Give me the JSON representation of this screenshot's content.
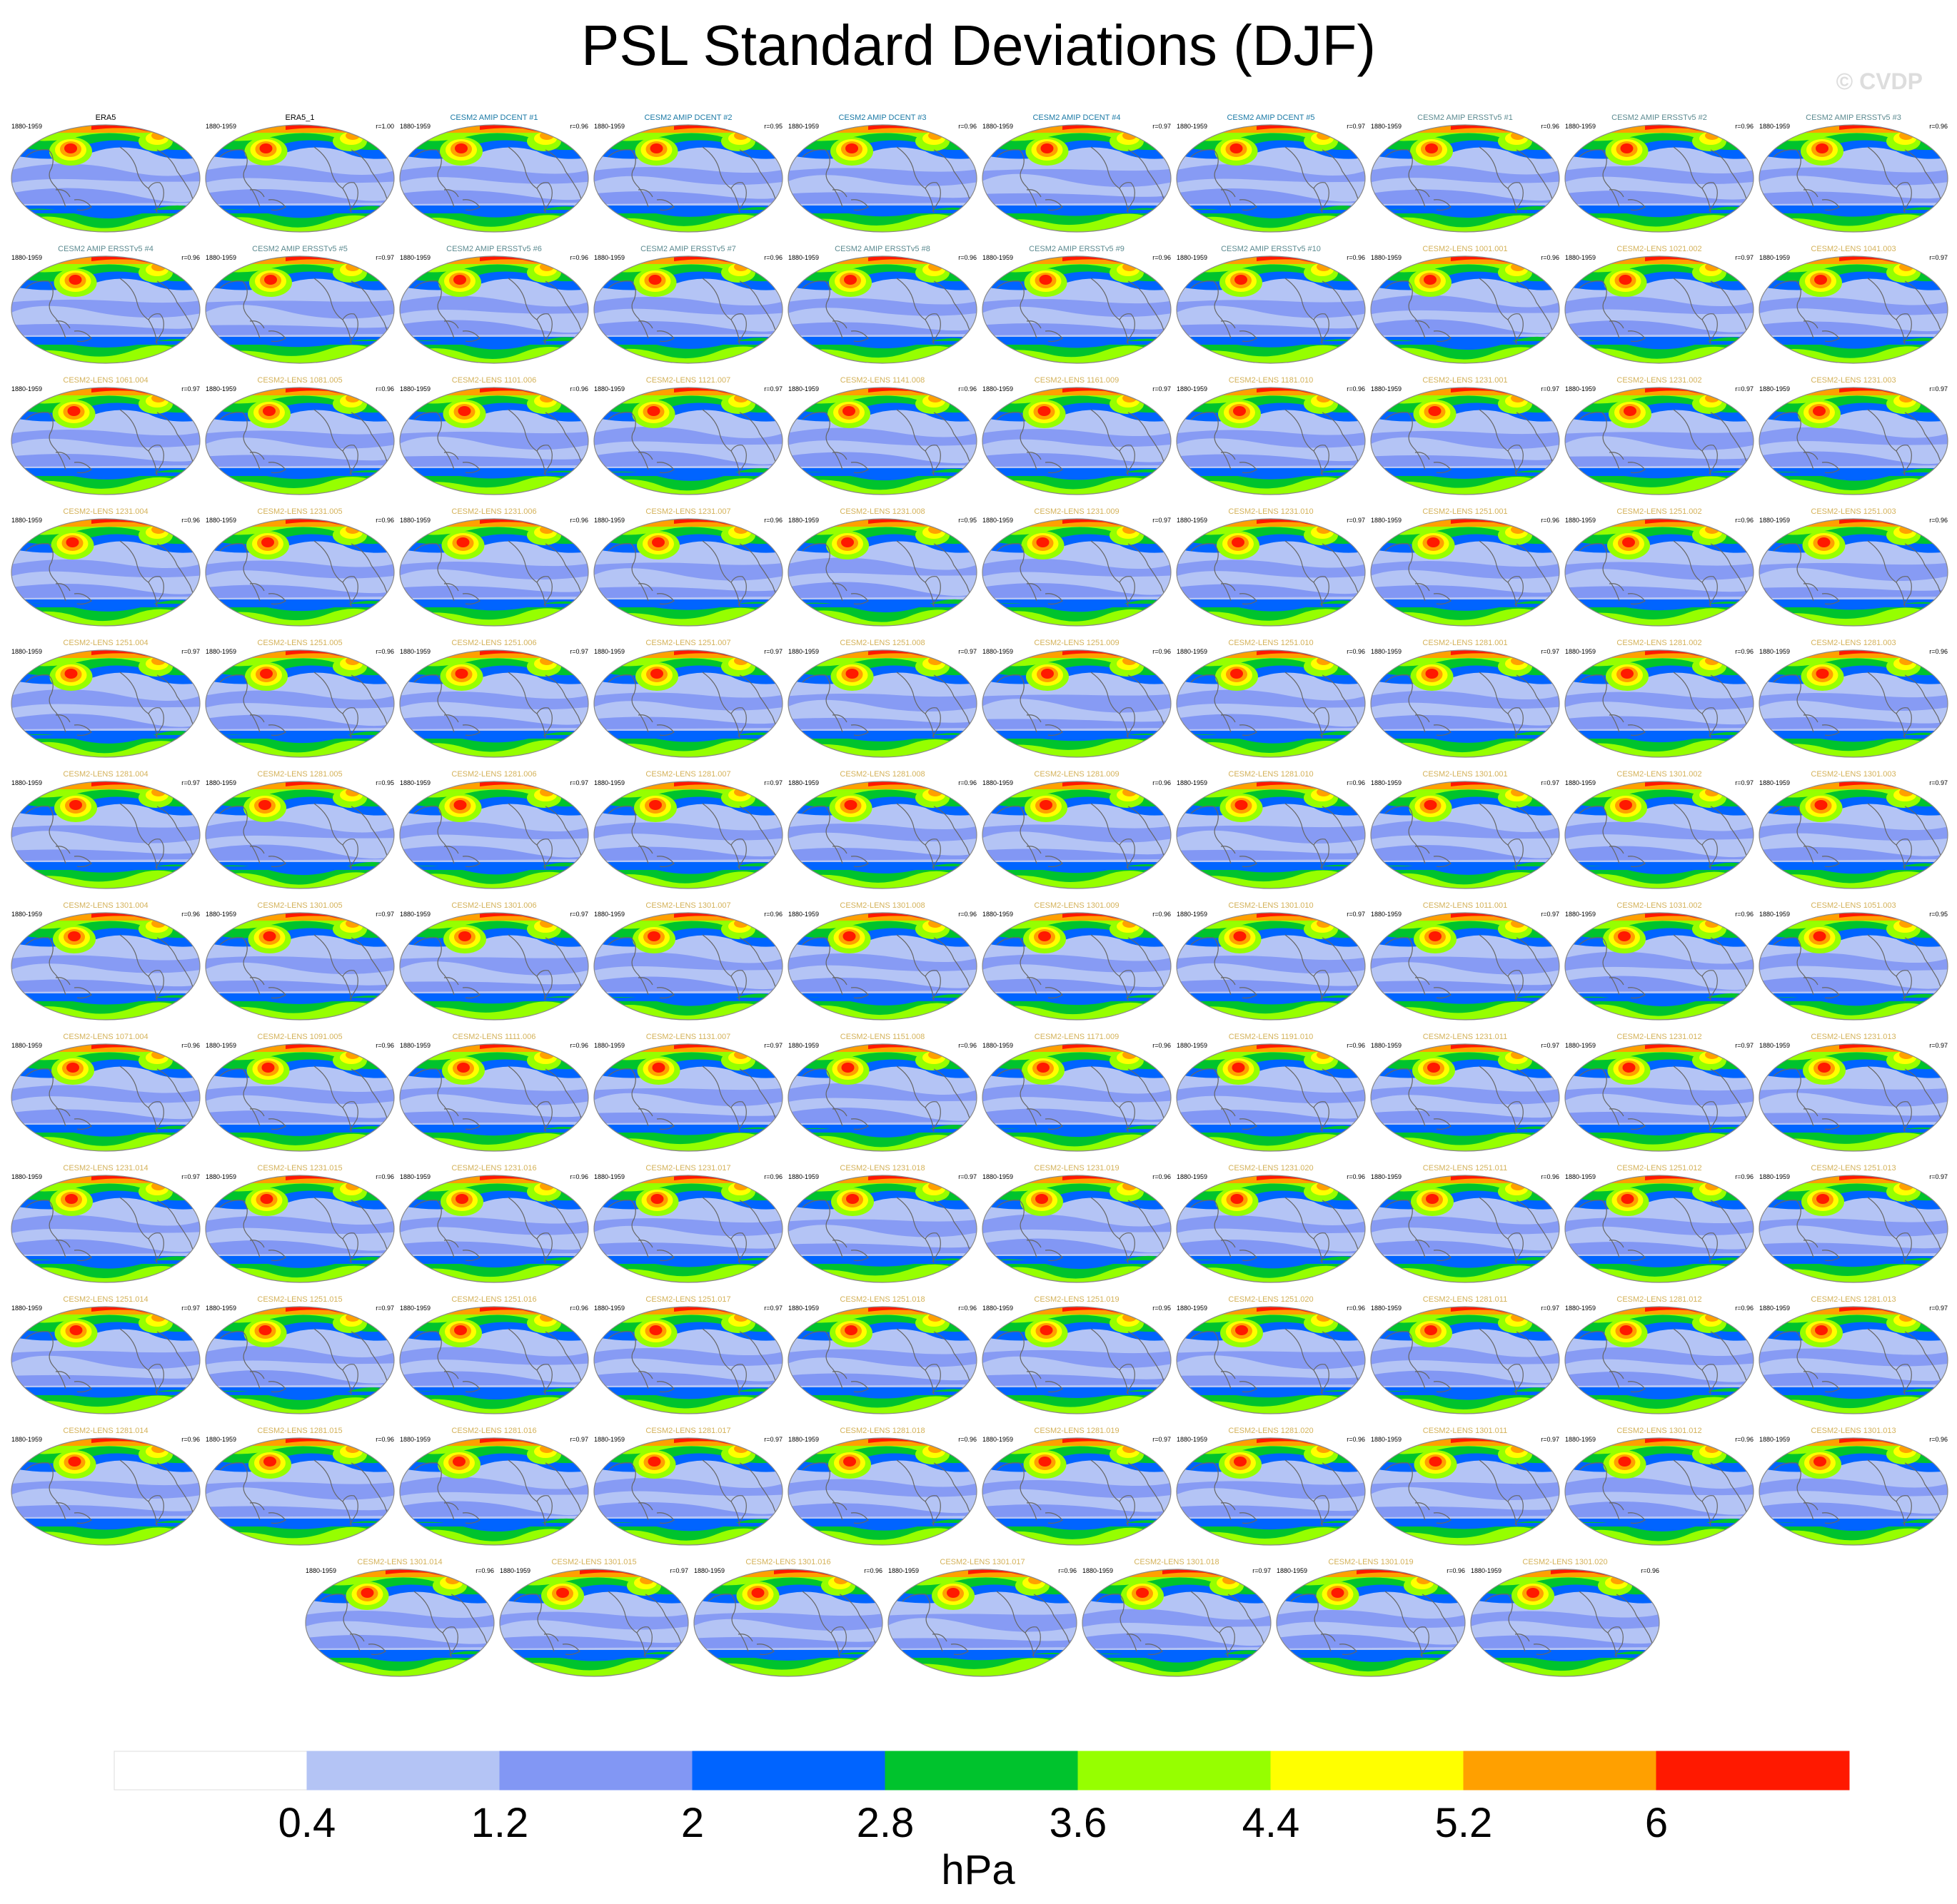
{
  "title": "PSL Standard Deviations (DJF)",
  "watermark": "© CVDP",
  "colorbar": {
    "colors": [
      "#ffffff",
      "#b4c4f5",
      "#8297f4",
      "#0064ff",
      "#00c32d",
      "#96ff00",
      "#ffff00",
      "#ffa000",
      "#ff1900"
    ],
    "tick_labels": [
      "0.4",
      "1.2",
      "2",
      "2.8",
      "3.6",
      "4.4",
      "5.2",
      "6"
    ],
    "units": "hPa"
  },
  "panel_colors": {
    "observation": "#000000",
    "cesm2_amip_dcent": "#1c7aa6",
    "cesm2_amip_ersstv5": "#5d8b91",
    "cesm2_lens": "#d4b25a"
  },
  "chart_data": {
    "type": "map-panel-grid",
    "title": "PSL Standard Deviations (DJF)",
    "units": "hPa",
    "levels": [
      0.4,
      1.2,
      2,
      2.8,
      3.6,
      4.4,
      5.2,
      6
    ],
    "panels": [
      {
        "name": "ERA5",
        "period": "1880-1959",
        "r": "",
        "group": "observation"
      },
      {
        "name": "ERA5_1",
        "period": "1880-1959",
        "r": "r=1.00",
        "group": "observation"
      },
      {
        "name": "CESM2 AMIP DCENT #1",
        "period": "1880-1959",
        "r": "r=0.96",
        "group": "cesm2_amip_dcent"
      },
      {
        "name": "CESM2 AMIP DCENT #2",
        "period": "1880-1959",
        "r": "r=0.95",
        "group": "cesm2_amip_dcent"
      },
      {
        "name": "CESM2 AMIP DCENT #3",
        "period": "1880-1959",
        "r": "r=0.96",
        "group": "cesm2_amip_dcent"
      },
      {
        "name": "CESM2 AMIP DCENT #4",
        "period": "1880-1959",
        "r": "r=0.97",
        "group": "cesm2_amip_dcent"
      },
      {
        "name": "CESM2 AMIP DCENT #5",
        "period": "1880-1959",
        "r": "r=0.97",
        "group": "cesm2_amip_dcent"
      },
      {
        "name": "CESM2 AMIP ERSSTv5 #1",
        "period": "1880-1959",
        "r": "r=0.96",
        "group": "cesm2_amip_ersstv5"
      },
      {
        "name": "CESM2 AMIP ERSSTv5 #2",
        "period": "1880-1959",
        "r": "r=0.96",
        "group": "cesm2_amip_ersstv5"
      },
      {
        "name": "CESM2 AMIP ERSSTv5 #3",
        "period": "1880-1959",
        "r": "r=0.96",
        "group": "cesm2_amip_ersstv5"
      },
      {
        "name": "CESM2 AMIP ERSSTv5 #4",
        "period": "1880-1959",
        "r": "r=0.96",
        "group": "cesm2_amip_ersstv5"
      },
      {
        "name": "CESM2 AMIP ERSSTv5 #5",
        "period": "1880-1959",
        "r": "r=0.97",
        "group": "cesm2_amip_ersstv5"
      },
      {
        "name": "CESM2 AMIP ERSSTv5 #6",
        "period": "1880-1959",
        "r": "r=0.96",
        "group": "cesm2_amip_ersstv5"
      },
      {
        "name": "CESM2 AMIP ERSSTv5 #7",
        "period": "1880-1959",
        "r": "r=0.96",
        "group": "cesm2_amip_ersstv5"
      },
      {
        "name": "CESM2 AMIP ERSSTv5 #8",
        "period": "1880-1959",
        "r": "r=0.96",
        "group": "cesm2_amip_ersstv5"
      },
      {
        "name": "CESM2 AMIP ERSSTv5 #9",
        "period": "1880-1959",
        "r": "r=0.96",
        "group": "cesm2_amip_ersstv5"
      },
      {
        "name": "CESM2 AMIP ERSSTv5 #10",
        "period": "1880-1959",
        "r": "r=0.96",
        "group": "cesm2_amip_ersstv5"
      },
      {
        "name": "CESM2-LENS 1001.001",
        "period": "1880-1959",
        "r": "r=0.96",
        "group": "cesm2_lens"
      },
      {
        "name": "CESM2-LENS 1021.002",
        "period": "1880-1959",
        "r": "r=0.97",
        "group": "cesm2_lens"
      },
      {
        "name": "CESM2-LENS 1041.003",
        "period": "1880-1959",
        "r": "r=0.97",
        "group": "cesm2_lens"
      },
      {
        "name": "CESM2-LENS 1061.004",
        "period": "1880-1959",
        "r": "r=0.97",
        "group": "cesm2_lens"
      },
      {
        "name": "CESM2-LENS 1081.005",
        "period": "1880-1959",
        "r": "r=0.96",
        "group": "cesm2_lens"
      },
      {
        "name": "CESM2-LENS 1101.006",
        "period": "1880-1959",
        "r": "r=0.96",
        "group": "cesm2_lens"
      },
      {
        "name": "CESM2-LENS 1121.007",
        "period": "1880-1959",
        "r": "r=0.97",
        "group": "cesm2_lens"
      },
      {
        "name": "CESM2-LENS 1141.008",
        "period": "1880-1959",
        "r": "r=0.96",
        "group": "cesm2_lens"
      },
      {
        "name": "CESM2-LENS 1161.009",
        "period": "1880-1959",
        "r": "r=0.97",
        "group": "cesm2_lens"
      },
      {
        "name": "CESM2-LENS 1181.010",
        "period": "1880-1959",
        "r": "r=0.96",
        "group": "cesm2_lens"
      },
      {
        "name": "CESM2-LENS 1231.001",
        "period": "1880-1959",
        "r": "r=0.97",
        "group": "cesm2_lens"
      },
      {
        "name": "CESM2-LENS 1231.002",
        "period": "1880-1959",
        "r": "r=0.97",
        "group": "cesm2_lens"
      },
      {
        "name": "CESM2-LENS 1231.003",
        "period": "1880-1959",
        "r": "r=0.97",
        "group": "cesm2_lens"
      },
      {
        "name": "CESM2-LENS 1231.004",
        "period": "1880-1959",
        "r": "r=0.96",
        "group": "cesm2_lens"
      },
      {
        "name": "CESM2-LENS 1231.005",
        "period": "1880-1959",
        "r": "r=0.96",
        "group": "cesm2_lens"
      },
      {
        "name": "CESM2-LENS 1231.006",
        "period": "1880-1959",
        "r": "r=0.96",
        "group": "cesm2_lens"
      },
      {
        "name": "CESM2-LENS 1231.007",
        "period": "1880-1959",
        "r": "r=0.96",
        "group": "cesm2_lens"
      },
      {
        "name": "CESM2-LENS 1231.008",
        "period": "1880-1959",
        "r": "r=0.95",
        "group": "cesm2_lens"
      },
      {
        "name": "CESM2-LENS 1231.009",
        "period": "1880-1959",
        "r": "r=0.97",
        "group": "cesm2_lens"
      },
      {
        "name": "CESM2-LENS 1231.010",
        "period": "1880-1959",
        "r": "r=0.97",
        "group": "cesm2_lens"
      },
      {
        "name": "CESM2-LENS 1251.001",
        "period": "1880-1959",
        "r": "r=0.96",
        "group": "cesm2_lens"
      },
      {
        "name": "CESM2-LENS 1251.002",
        "period": "1880-1959",
        "r": "r=0.96",
        "group": "cesm2_lens"
      },
      {
        "name": "CESM2-LENS 1251.003",
        "period": "1880-1959",
        "r": "r=0.96",
        "group": "cesm2_lens"
      },
      {
        "name": "CESM2-LENS 1251.004",
        "period": "1880-1959",
        "r": "r=0.97",
        "group": "cesm2_lens"
      },
      {
        "name": "CESM2-LENS 1251.005",
        "period": "1880-1959",
        "r": "r=0.96",
        "group": "cesm2_lens"
      },
      {
        "name": "CESM2-LENS 1251.006",
        "period": "1880-1959",
        "r": "r=0.97",
        "group": "cesm2_lens"
      },
      {
        "name": "CESM2-LENS 1251.007",
        "period": "1880-1959",
        "r": "r=0.97",
        "group": "cesm2_lens"
      },
      {
        "name": "CESM2-LENS 1251.008",
        "period": "1880-1959",
        "r": "r=0.97",
        "group": "cesm2_lens"
      },
      {
        "name": "CESM2-LENS 1251.009",
        "period": "1880-1959",
        "r": "r=0.96",
        "group": "cesm2_lens"
      },
      {
        "name": "CESM2-LENS 1251.010",
        "period": "1880-1959",
        "r": "r=0.96",
        "group": "cesm2_lens"
      },
      {
        "name": "CESM2-LENS 1281.001",
        "period": "1880-1959",
        "r": "r=0.97",
        "group": "cesm2_lens"
      },
      {
        "name": "CESM2-LENS 1281.002",
        "period": "1880-1959",
        "r": "r=0.96",
        "group": "cesm2_lens"
      },
      {
        "name": "CESM2-LENS 1281.003",
        "period": "1880-1959",
        "r": "r=0.96",
        "group": "cesm2_lens"
      },
      {
        "name": "CESM2-LENS 1281.004",
        "period": "1880-1959",
        "r": "r=0.97",
        "group": "cesm2_lens"
      },
      {
        "name": "CESM2-LENS 1281.005",
        "period": "1880-1959",
        "r": "r=0.95",
        "group": "cesm2_lens"
      },
      {
        "name": "CESM2-LENS 1281.006",
        "period": "1880-1959",
        "r": "r=0.97",
        "group": "cesm2_lens"
      },
      {
        "name": "CESM2-LENS 1281.007",
        "period": "1880-1959",
        "r": "r=0.97",
        "group": "cesm2_lens"
      },
      {
        "name": "CESM2-LENS 1281.008",
        "period": "1880-1959",
        "r": "r=0.96",
        "group": "cesm2_lens"
      },
      {
        "name": "CESM2-LENS 1281.009",
        "period": "1880-1959",
        "r": "r=0.96",
        "group": "cesm2_lens"
      },
      {
        "name": "CESM2-LENS 1281.010",
        "period": "1880-1959",
        "r": "r=0.96",
        "group": "cesm2_lens"
      },
      {
        "name": "CESM2-LENS 1301.001",
        "period": "1880-1959",
        "r": "r=0.97",
        "group": "cesm2_lens"
      },
      {
        "name": "CESM2-LENS 1301.002",
        "period": "1880-1959",
        "r": "r=0.97",
        "group": "cesm2_lens"
      },
      {
        "name": "CESM2-LENS 1301.003",
        "period": "1880-1959",
        "r": "r=0.97",
        "group": "cesm2_lens"
      },
      {
        "name": "CESM2-LENS 1301.004",
        "period": "1880-1959",
        "r": "r=0.96",
        "group": "cesm2_lens"
      },
      {
        "name": "CESM2-LENS 1301.005",
        "period": "1880-1959",
        "r": "r=0.97",
        "group": "cesm2_lens"
      },
      {
        "name": "CESM2-LENS 1301.006",
        "period": "1880-1959",
        "r": "r=0.97",
        "group": "cesm2_lens"
      },
      {
        "name": "CESM2-LENS 1301.007",
        "period": "1880-1959",
        "r": "r=0.96",
        "group": "cesm2_lens"
      },
      {
        "name": "CESM2-LENS 1301.008",
        "period": "1880-1959",
        "r": "r=0.96",
        "group": "cesm2_lens"
      },
      {
        "name": "CESM2-LENS 1301.009",
        "period": "1880-1959",
        "r": "r=0.96",
        "group": "cesm2_lens"
      },
      {
        "name": "CESM2-LENS 1301.010",
        "period": "1880-1959",
        "r": "r=0.97",
        "group": "cesm2_lens"
      },
      {
        "name": "CESM2-LENS 1011.001",
        "period": "1880-1959",
        "r": "r=0.97",
        "group": "cesm2_lens"
      },
      {
        "name": "CESM2-LENS 1031.002",
        "period": "1880-1959",
        "r": "r=0.96",
        "group": "cesm2_lens"
      },
      {
        "name": "CESM2-LENS 1051.003",
        "period": "1880-1959",
        "r": "r=0.95",
        "group": "cesm2_lens"
      },
      {
        "name": "CESM2-LENS 1071.004",
        "period": "1880-1959",
        "r": "r=0.96",
        "group": "cesm2_lens"
      },
      {
        "name": "CESM2-LENS 1091.005",
        "period": "1880-1959",
        "r": "r=0.96",
        "group": "cesm2_lens"
      },
      {
        "name": "CESM2-LENS 1111.006",
        "period": "1880-1959",
        "r": "r=0.96",
        "group": "cesm2_lens"
      },
      {
        "name": "CESM2-LENS 1131.007",
        "period": "1880-1959",
        "r": "r=0.97",
        "group": "cesm2_lens"
      },
      {
        "name": "CESM2-LENS 1151.008",
        "period": "1880-1959",
        "r": "r=0.96",
        "group": "cesm2_lens"
      },
      {
        "name": "CESM2-LENS 1171.009",
        "period": "1880-1959",
        "r": "r=0.96",
        "group": "cesm2_lens"
      },
      {
        "name": "CESM2-LENS 1191.010",
        "period": "1880-1959",
        "r": "r=0.96",
        "group": "cesm2_lens"
      },
      {
        "name": "CESM2-LENS 1231.011",
        "period": "1880-1959",
        "r": "r=0.97",
        "group": "cesm2_lens"
      },
      {
        "name": "CESM2-LENS 1231.012",
        "period": "1880-1959",
        "r": "r=0.97",
        "group": "cesm2_lens"
      },
      {
        "name": "CESM2-LENS 1231.013",
        "period": "1880-1959",
        "r": "r=0.97",
        "group": "cesm2_lens"
      },
      {
        "name": "CESM2-LENS 1231.014",
        "period": "1880-1959",
        "r": "r=0.97",
        "group": "cesm2_lens"
      },
      {
        "name": "CESM2-LENS 1231.015",
        "period": "1880-1959",
        "r": "r=0.96",
        "group": "cesm2_lens"
      },
      {
        "name": "CESM2-LENS 1231.016",
        "period": "1880-1959",
        "r": "r=0.96",
        "group": "cesm2_lens"
      },
      {
        "name": "CESM2-LENS 1231.017",
        "period": "1880-1959",
        "r": "r=0.96",
        "group": "cesm2_lens"
      },
      {
        "name": "CESM2-LENS 1231.018",
        "period": "1880-1959",
        "r": "r=0.97",
        "group": "cesm2_lens"
      },
      {
        "name": "CESM2-LENS 1231.019",
        "period": "1880-1959",
        "r": "r=0.96",
        "group": "cesm2_lens"
      },
      {
        "name": "CESM2-LENS 1231.020",
        "period": "1880-1959",
        "r": "r=0.96",
        "group": "cesm2_lens"
      },
      {
        "name": "CESM2-LENS 1251.011",
        "period": "1880-1959",
        "r": "r=0.96",
        "group": "cesm2_lens"
      },
      {
        "name": "CESM2-LENS 1251.012",
        "period": "1880-1959",
        "r": "r=0.96",
        "group": "cesm2_lens"
      },
      {
        "name": "CESM2-LENS 1251.013",
        "period": "1880-1959",
        "r": "r=0.97",
        "group": "cesm2_lens"
      },
      {
        "name": "CESM2-LENS 1251.014",
        "period": "1880-1959",
        "r": "r=0.97",
        "group": "cesm2_lens"
      },
      {
        "name": "CESM2-LENS 1251.015",
        "period": "1880-1959",
        "r": "r=0.97",
        "group": "cesm2_lens"
      },
      {
        "name": "CESM2-LENS 1251.016",
        "period": "1880-1959",
        "r": "r=0.96",
        "group": "cesm2_lens"
      },
      {
        "name": "CESM2-LENS 1251.017",
        "period": "1880-1959",
        "r": "r=0.97",
        "group": "cesm2_lens"
      },
      {
        "name": "CESM2-LENS 1251.018",
        "period": "1880-1959",
        "r": "r=0.96",
        "group": "cesm2_lens"
      },
      {
        "name": "CESM2-LENS 1251.019",
        "period": "1880-1959",
        "r": "r=0.95",
        "group": "cesm2_lens"
      },
      {
        "name": "CESM2-LENS 1251.020",
        "period": "1880-1959",
        "r": "r=0.96",
        "group": "cesm2_lens"
      },
      {
        "name": "CESM2-LENS 1281.011",
        "period": "1880-1959",
        "r": "r=0.97",
        "group": "cesm2_lens"
      },
      {
        "name": "CESM2-LENS 1281.012",
        "period": "1880-1959",
        "r": "r=0.96",
        "group": "cesm2_lens"
      },
      {
        "name": "CESM2-LENS 1281.013",
        "period": "1880-1959",
        "r": "r=0.97",
        "group": "cesm2_lens"
      },
      {
        "name": "CESM2-LENS 1281.014",
        "period": "1880-1959",
        "r": "r=0.96",
        "group": "cesm2_lens"
      },
      {
        "name": "CESM2-LENS 1281.015",
        "period": "1880-1959",
        "r": "r=0.96",
        "group": "cesm2_lens"
      },
      {
        "name": "CESM2-LENS 1281.016",
        "period": "1880-1959",
        "r": "r=0.97",
        "group": "cesm2_lens"
      },
      {
        "name": "CESM2-LENS 1281.017",
        "period": "1880-1959",
        "r": "r=0.97",
        "group": "cesm2_lens"
      },
      {
        "name": "CESM2-LENS 1281.018",
        "period": "1880-1959",
        "r": "r=0.96",
        "group": "cesm2_lens"
      },
      {
        "name": "CESM2-LENS 1281.019",
        "period": "1880-1959",
        "r": "r=0.97",
        "group": "cesm2_lens"
      },
      {
        "name": "CESM2-LENS 1281.020",
        "period": "1880-1959",
        "r": "r=0.96",
        "group": "cesm2_lens"
      },
      {
        "name": "CESM2-LENS 1301.011",
        "period": "1880-1959",
        "r": "r=0.97",
        "group": "cesm2_lens"
      },
      {
        "name": "CESM2-LENS 1301.012",
        "period": "1880-1959",
        "r": "r=0.96",
        "group": "cesm2_lens"
      },
      {
        "name": "CESM2-LENS 1301.013",
        "period": "1880-1959",
        "r": "r=0.96",
        "group": "cesm2_lens"
      },
      {
        "name": "CESM2-LENS 1301.014",
        "period": "1880-1959",
        "r": "r=0.96",
        "group": "cesm2_lens"
      },
      {
        "name": "CESM2-LENS 1301.015",
        "period": "1880-1959",
        "r": "r=0.97",
        "group": "cesm2_lens"
      },
      {
        "name": "CESM2-LENS 1301.016",
        "period": "1880-1959",
        "r": "r=0.96",
        "group": "cesm2_lens"
      },
      {
        "name": "CESM2-LENS 1301.017",
        "period": "1880-1959",
        "r": "r=0.96",
        "group": "cesm2_lens"
      },
      {
        "name": "CESM2-LENS 1301.018",
        "period": "1880-1959",
        "r": "r=0.97",
        "group": "cesm2_lens"
      },
      {
        "name": "CESM2-LENS 1301.019",
        "period": "1880-1959",
        "r": "r=0.96",
        "group": "cesm2_lens"
      },
      {
        "name": "CESM2-LENS 1301.020",
        "period": "1880-1959",
        "r": "r=0.96",
        "group": "cesm2_lens"
      }
    ]
  }
}
